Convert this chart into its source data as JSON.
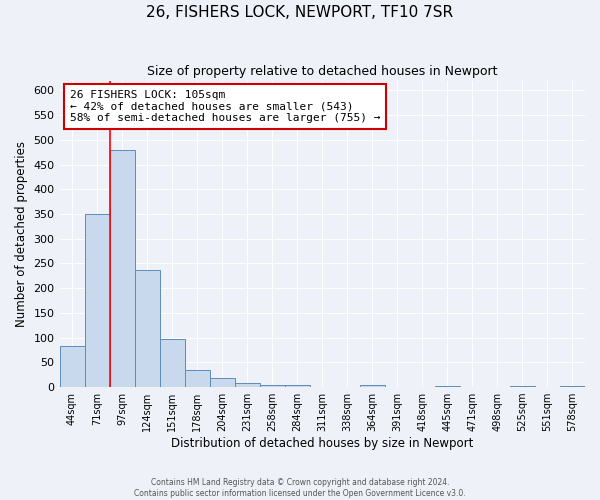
{
  "title": "26, FISHERS LOCK, NEWPORT, TF10 7SR",
  "subtitle": "Size of property relative to detached houses in Newport",
  "xlabel": "Distribution of detached houses by size in Newport",
  "ylabel": "Number of detached properties",
  "bar_labels": [
    "44sqm",
    "71sqm",
    "97sqm",
    "124sqm",
    "151sqm",
    "178sqm",
    "204sqm",
    "231sqm",
    "258sqm",
    "284sqm",
    "311sqm",
    "338sqm",
    "364sqm",
    "391sqm",
    "418sqm",
    "445sqm",
    "471sqm",
    "498sqm",
    "525sqm",
    "551sqm",
    "578sqm"
  ],
  "bar_values": [
    83,
    350,
    480,
    237,
    97,
    35,
    19,
    8,
    5,
    5,
    0,
    0,
    5,
    0,
    0,
    2,
    0,
    0,
    2,
    0,
    2
  ],
  "bar_color": "#c9d9ed",
  "bar_edge_color": "#5b8db8",
  "red_line_x": 1.5,
  "annotation_title": "26 FISHERS LOCK: 105sqm",
  "annotation_line1": "← 42% of detached houses are smaller (543)",
  "annotation_line2": "58% of semi-detached houses are larger (755) →",
  "annotation_box_color": "#ffffff",
  "annotation_box_edge_color": "#cc0000",
  "ylim": [
    0,
    620
  ],
  "yticks": [
    0,
    50,
    100,
    150,
    200,
    250,
    300,
    350,
    400,
    450,
    500,
    550,
    600
  ],
  "footer1": "Contains HM Land Registry data © Crown copyright and database right 2024.",
  "footer2": "Contains public sector information licensed under the Open Government Licence v3.0.",
  "background_color": "#eef2f8",
  "grid_color": "#ffffff",
  "title_fontsize": 11,
  "subtitle_fontsize": 9
}
